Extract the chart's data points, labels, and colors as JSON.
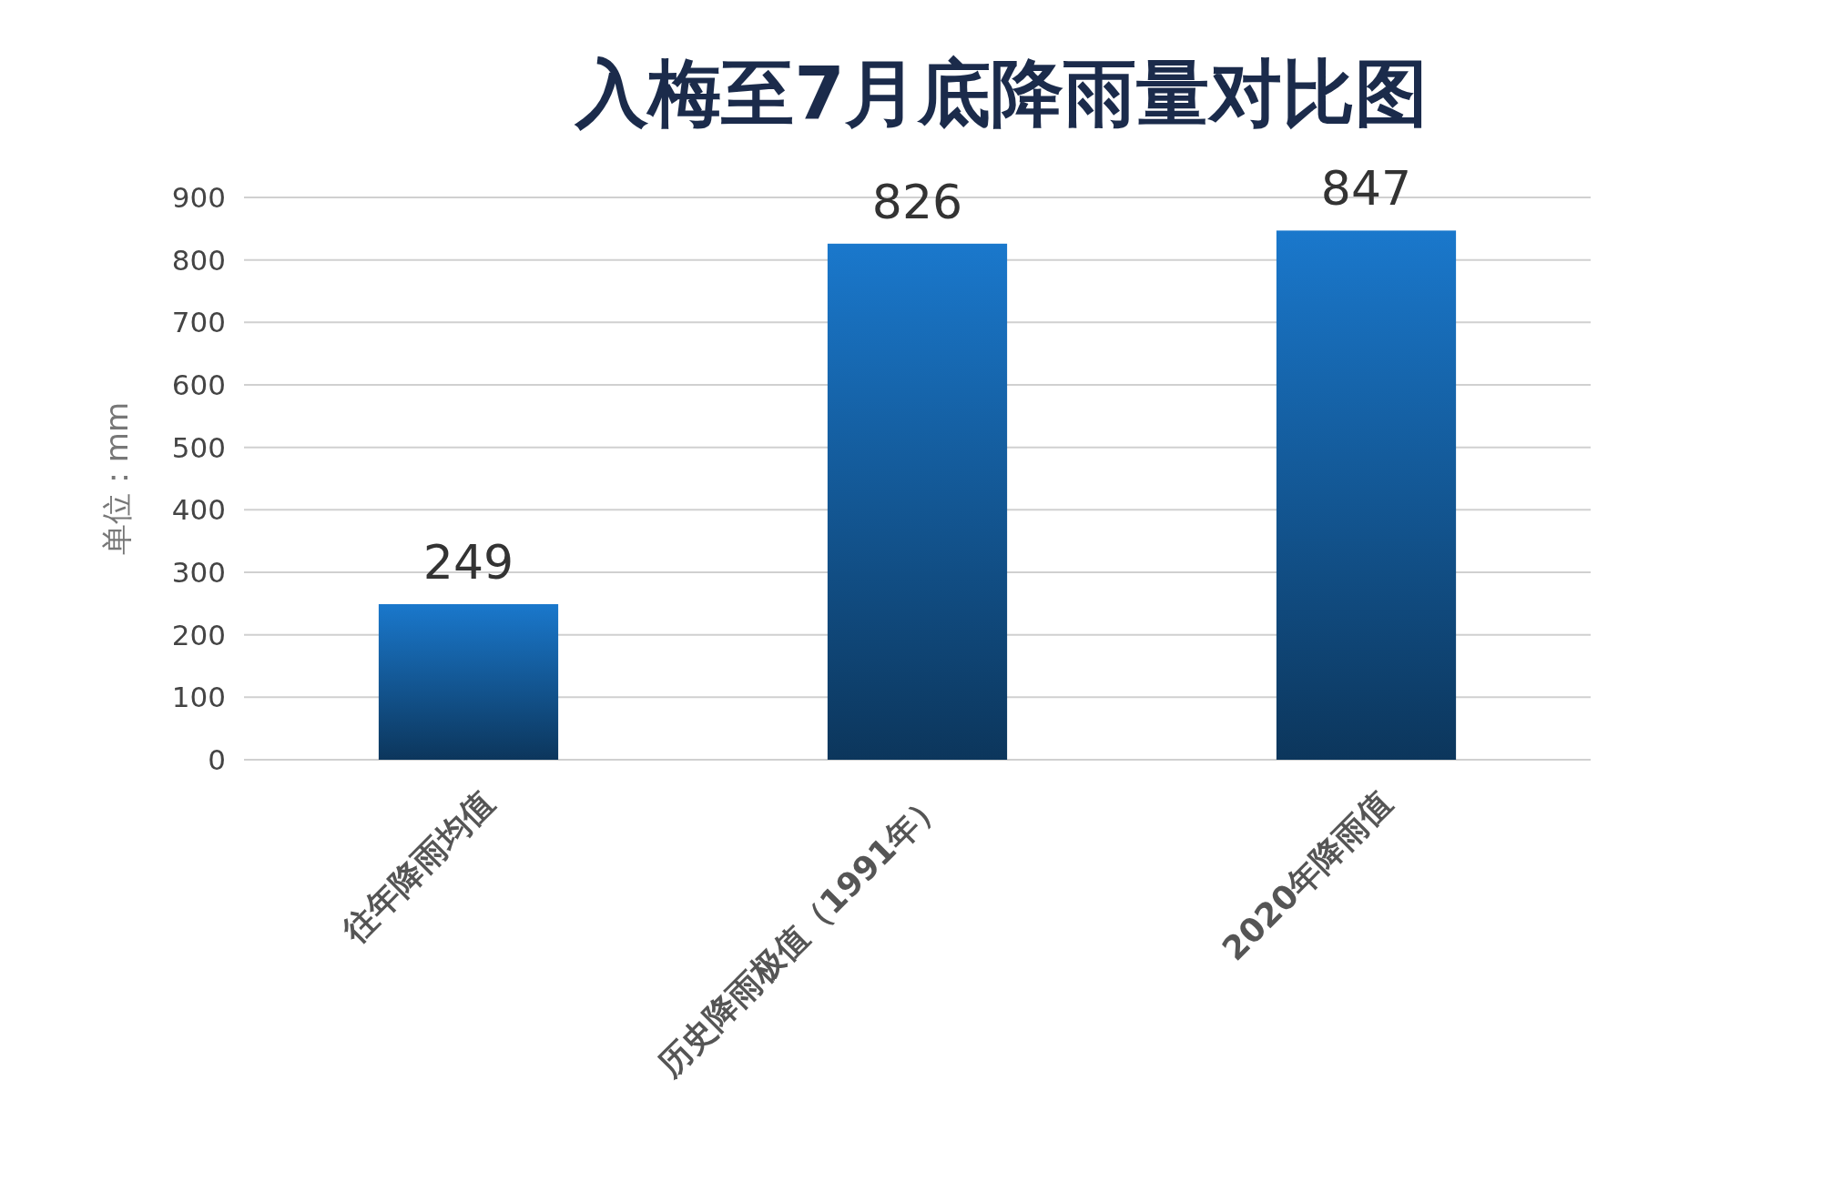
{
  "chart_data": {
    "type": "bar",
    "title": "入梅至7月底降雨量对比图",
    "ylabel": "单位：mm",
    "categories": [
      "往年降雨均值",
      "历史降雨极值（1991年）",
      "2020年降雨值"
    ],
    "values": [
      249,
      826,
      847
    ],
    "color": "#1a78cc",
    "ylim": [
      0,
      900
    ],
    "yticks": [
      0,
      100,
      200,
      300,
      400,
      500,
      600,
      700,
      800,
      900
    ],
    "grid": "y",
    "data_labels": true
  }
}
